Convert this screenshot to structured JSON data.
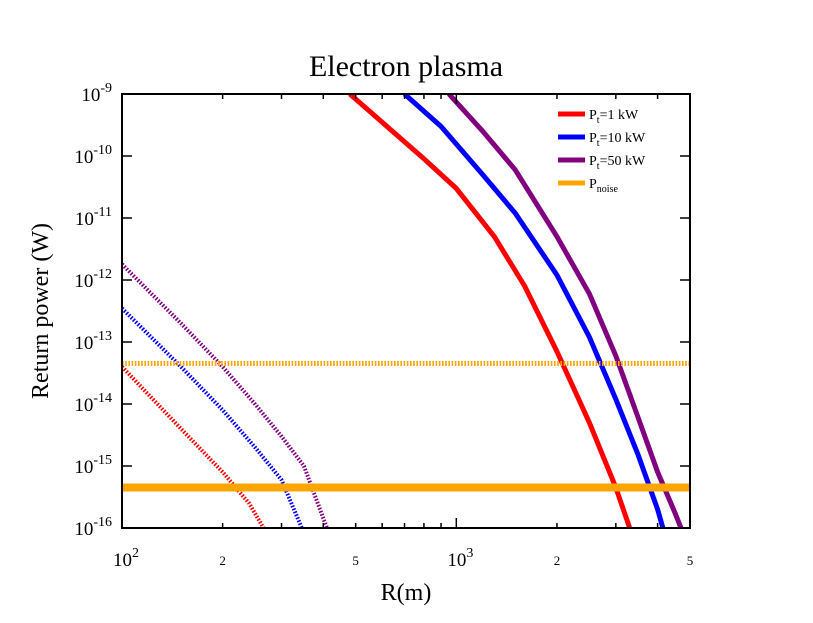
{
  "chart_data": {
    "type": "line",
    "title": "Electron plasma",
    "xlabel": "R(m)",
    "ylabel": "Return power (W)",
    "xscale": "log",
    "yscale": "log",
    "xlim": [
      100,
      5000
    ],
    "ylim": [
      1e-16,
      1e-09
    ],
    "grid": false,
    "legend_position": "top-right",
    "x_ticks": [
      {
        "value": 100,
        "base": "10",
        "exp": "2"
      },
      {
        "value": 200,
        "label": "2"
      },
      {
        "value": 500,
        "label": "5"
      },
      {
        "value": 1000,
        "base": "10",
        "exp": "3"
      },
      {
        "value": 2000,
        "label": "2"
      },
      {
        "value": 5000,
        "label": "5"
      }
    ],
    "y_ticks": [
      {
        "value": 1e-16,
        "base": "10",
        "exp": "-16"
      },
      {
        "value": 1e-15,
        "base": "10",
        "exp": "-15"
      },
      {
        "value": 1e-14,
        "base": "10",
        "exp": "-14"
      },
      {
        "value": 1e-13,
        "base": "10",
        "exp": "-13"
      },
      {
        "value": 1e-12,
        "base": "10",
        "exp": "-12"
      },
      {
        "value": 1e-11,
        "base": "10",
        "exp": "-11"
      },
      {
        "value": 1e-10,
        "base": "10",
        "exp": "-10"
      },
      {
        "value": 1e-09,
        "base": "10",
        "exp": "-9"
      }
    ],
    "legend": [
      {
        "base": "P",
        "sub": "t",
        "text": "=1 kW",
        "color": "#ff0000"
      },
      {
        "base": "P",
        "sub": "t",
        "text": "=10 kW",
        "color": "#0000ff"
      },
      {
        "base": "P",
        "sub": "t",
        "text": "=50 kW",
        "color": "#800080"
      },
      {
        "base": "P",
        "sub": "noise",
        "text": "",
        "color": "#ffa500"
      }
    ],
    "series": [
      {
        "color": "#ff0000",
        "style": "solid",
        "x": [
          480,
          600,
          800,
          1000,
          1300,
          1600,
          2000,
          2500,
          3000,
          3300
        ],
        "y": [
          1e-09,
          3.5e-10,
          9e-11,
          3e-11,
          5e-12,
          8e-13,
          7e-14,
          5e-15,
          4.5e-16,
          1e-16
        ]
      },
      {
        "color": "#0000ff",
        "style": "solid",
        "x": [
          700,
          900,
          1200,
          1500,
          2000,
          2500,
          3000,
          3500,
          4000,
          4150
        ],
        "y": [
          1e-09,
          3e-10,
          5e-11,
          1.2e-11,
          1.2e-12,
          1.2e-13,
          1.2e-14,
          1.5e-15,
          2e-16,
          1e-16
        ]
      },
      {
        "color": "#800080",
        "style": "solid",
        "x": [
          950,
          1200,
          1500,
          2000,
          2500,
          3000,
          3500,
          4000,
          4500,
          4700
        ],
        "y": [
          1e-09,
          2.5e-10,
          6e-11,
          5e-12,
          6e-13,
          6e-14,
          6e-15,
          8e-16,
          1.8e-16,
          1e-16
        ]
      },
      {
        "color": "#ff0000",
        "style": "dotted",
        "x": [
          100,
          150,
          200,
          240,
          265
        ],
        "y": [
          4e-14,
          4e-15,
          8e-16,
          2.5e-16,
          1e-16
        ]
      },
      {
        "color": "#0000ff",
        "style": "dotted",
        "x": [
          100,
          150,
          200,
          250,
          300,
          345
        ],
        "y": [
          3.5e-13,
          4e-14,
          8e-15,
          2e-15,
          6e-16,
          1e-16
        ]
      },
      {
        "color": "#800080",
        "style": "dotted",
        "x": [
          100,
          150,
          200,
          250,
          300,
          350,
          410
        ],
        "y": [
          1.8e-12,
          2e-13,
          4e-14,
          1e-14,
          3e-15,
          1e-15,
          1e-16
        ]
      },
      {
        "color": "#ffa500",
        "style": "dotted",
        "x": [
          100,
          5000
        ],
        "y": [
          4.5e-14,
          4.5e-14
        ]
      },
      {
        "color": "#ffa500",
        "style": "solid",
        "x": [
          100,
          5000
        ],
        "y": [
          4.5e-16,
          4.5e-16
        ]
      }
    ]
  }
}
